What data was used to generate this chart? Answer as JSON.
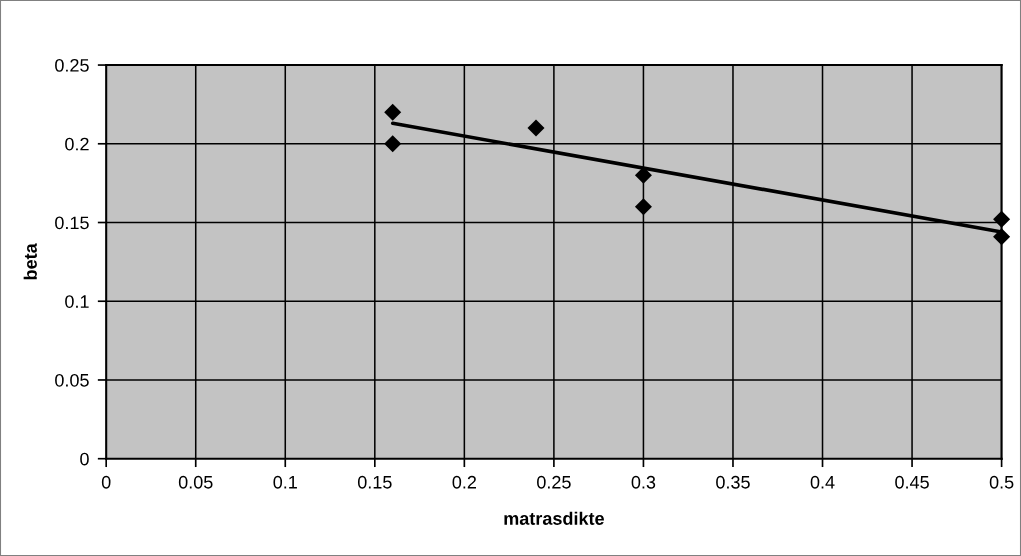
{
  "chart_data": {
    "type": "scatter",
    "xlabel": "matrasdikte",
    "ylabel": "beta",
    "xlim": [
      0,
      0.5
    ],
    "ylim": [
      0,
      0.25
    ],
    "xticks": [
      0,
      0.05,
      0.1,
      0.15,
      0.2,
      0.25,
      0.3,
      0.35,
      0.4,
      0.45,
      0.5
    ],
    "yticks": [
      0,
      0.05,
      0.1,
      0.15,
      0.2,
      0.25
    ],
    "grid": true,
    "marker": "diamond",
    "series": [
      {
        "color": "#000000",
        "x": [
          0.16,
          0.16,
          0.24,
          0.3,
          0.3,
          0.5,
          0.5
        ],
        "values": [
          0.22,
          0.2,
          0.21,
          0.18,
          0.16,
          0.152,
          0.141
        ]
      },
      {
        "type": "line",
        "color": "#000000",
        "x": [
          0.16,
          0.5
        ],
        "values": [
          0.213,
          0.144
        ],
        "marker": "none",
        "line_style": "solid"
      }
    ]
  }
}
